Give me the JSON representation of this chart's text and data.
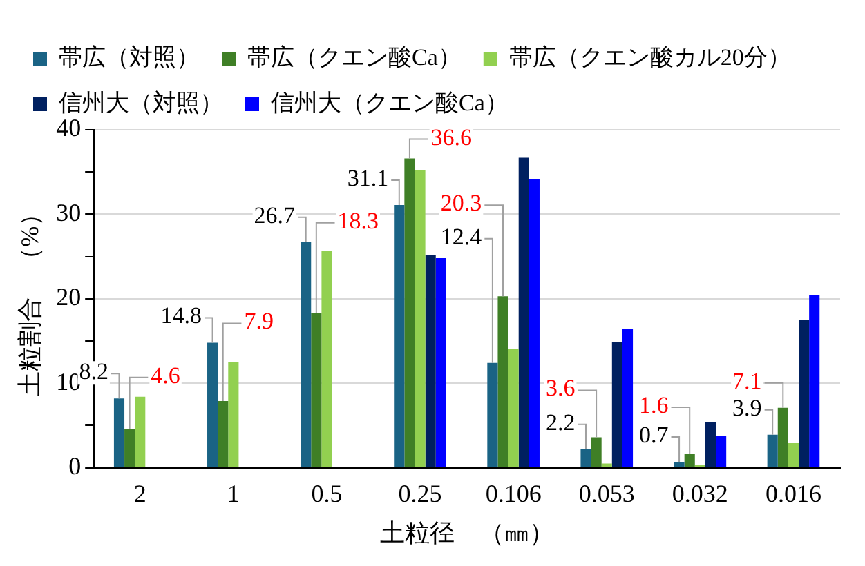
{
  "chart_data": {
    "type": "bar",
    "xlabel": "土粒径　（㎜）",
    "ylabel": "土粒割合　（%）",
    "categories": [
      "2",
      "1",
      "0.5",
      "0.25",
      "0.106",
      "0.053",
      "0.032",
      "0.016"
    ],
    "series": [
      {
        "name": "帯広（対照）",
        "color": "#1a6385",
        "values": [
          8.2,
          14.8,
          26.7,
          31.1,
          12.4,
          2.2,
          0.7,
          3.9
        ],
        "value_labels": [
          "8.2",
          "14.8",
          "26.7",
          "31.1",
          "12.4",
          "2.2",
          "0.7",
          "3.9"
        ]
      },
      {
        "name": "帯広（クエン酸Ca）",
        "color": "#3f7f26",
        "values": [
          4.6,
          7.9,
          18.3,
          36.6,
          20.3,
          3.6,
          1.6,
          7.1
        ],
        "value_labels": [
          "4.6",
          "7.9",
          "18.3",
          "36.6",
          "20.3",
          "3.6",
          "1.6",
          "7.1"
        ]
      },
      {
        "name": "帯広（クエン酸カル20分）",
        "color": "#92d050",
        "values": [
          8.4,
          12.5,
          25.7,
          35.2,
          14.1,
          0.5,
          0.3,
          2.9
        ]
      },
      {
        "name": "信州大（対照）",
        "color": "#002060",
        "values": [
          null,
          null,
          null,
          25.2,
          36.7,
          14.9,
          5.4,
          17.5
        ]
      },
      {
        "name": "信州大（クエン酸Ca）",
        "color": "#0000ff",
        "values": [
          null,
          null,
          null,
          24.8,
          34.2,
          16.4,
          3.8,
          20.4
        ]
      }
    ],
    "ylim": [
      0,
      40
    ],
    "yticks": [
      0,
      {
        "value": 5,
        "label": null
      },
      10,
      {
        "value": 15,
        "label": null
      },
      20,
      {
        "value": 25,
        "label": null
      },
      30,
      {
        "value": 35,
        "label": null
      },
      40
    ],
    "grid": "y",
    "legend": "top"
  }
}
